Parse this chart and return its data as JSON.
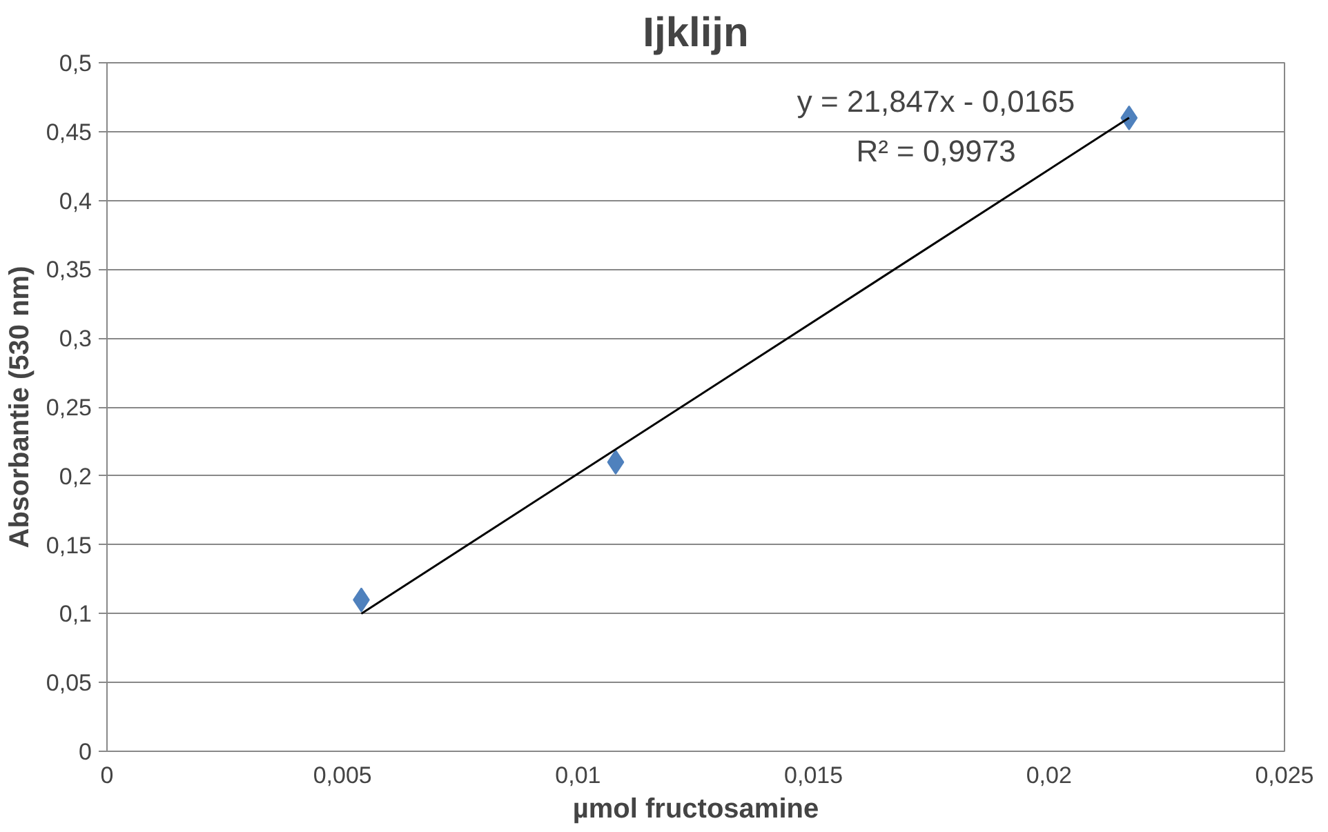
{
  "chart_data": {
    "type": "scatter",
    "title": "Ijklijn",
    "xlabel": "µmol fructosamine",
    "ylabel": "Absorbantie (530 nm)",
    "series": [
      {
        "color": "#4f81bd",
        "marker": "diamond",
        "x": [
          0.0054,
          0.0108,
          0.0217
        ],
        "values": [
          0.11,
          0.21,
          0.46
        ]
      },
      {
        "type": "line",
        "color": "#000000",
        "marker": "none",
        "x": [
          0.0054,
          0.0217
        ],
        "values": [
          0.1,
          0.46
        ]
      }
    ],
    "annotations": [
      "y = 21,847x - 0,0165",
      "R² = 0,9973"
    ],
    "xlim": [
      0,
      0.025
    ],
    "ylim": [
      0,
      0.5
    ],
    "xticks": [
      0,
      {
        "value": 0.005,
        "label": "0,005"
      },
      {
        "value": 0.01,
        "label": "0,01"
      },
      {
        "value": 0.015,
        "label": "0,015"
      },
      {
        "value": 0.02,
        "label": "0,02"
      },
      {
        "value": 0.025,
        "label": "0,025"
      }
    ],
    "yticks": [
      0,
      {
        "value": 0.05,
        "label": "0,05"
      },
      {
        "value": 0.1,
        "label": "0,1"
      },
      {
        "value": 0.15,
        "label": "0,15"
      },
      {
        "value": 0.2,
        "label": "0,2"
      },
      {
        "value": 0.25,
        "label": "0,25"
      },
      {
        "value": 0.3,
        "label": "0,3"
      },
      {
        "value": 0.35,
        "label": "0,35"
      },
      {
        "value": 0.4,
        "label": "0,4"
      },
      {
        "value": 0.45,
        "label": "0,45"
      },
      {
        "value": 0.5,
        "label": "0,5"
      }
    ],
    "grid": "y"
  }
}
